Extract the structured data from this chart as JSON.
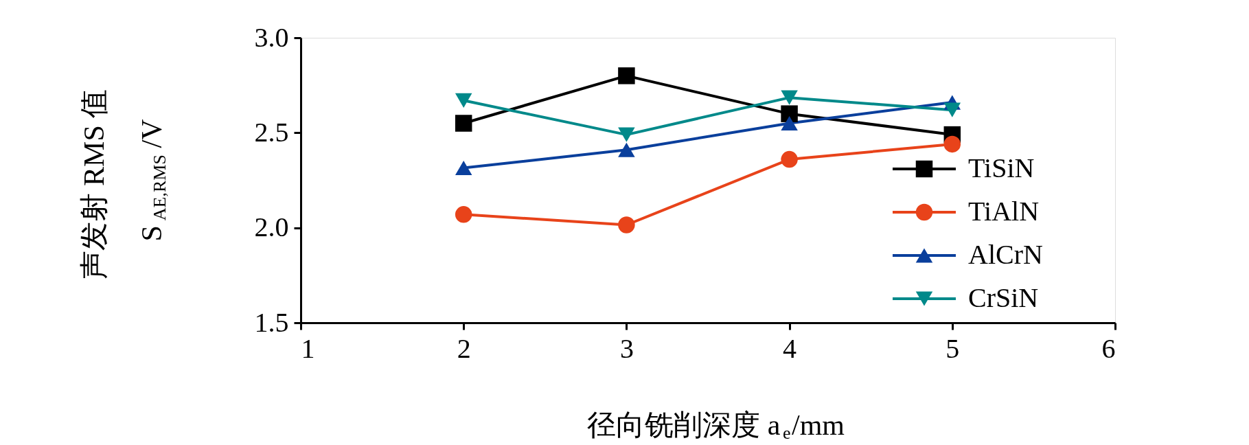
{
  "chart_data": {
    "type": "line",
    "xlabel": "径向铣削深度 a$_{e}$/mm",
    "ylabel": "声发射 RMS 值\nS$_{AE,RMS}$/V",
    "x": [
      2,
      3,
      4,
      5
    ],
    "xlim": [
      1,
      6
    ],
    "xticks": [
      1,
      2,
      3,
      4,
      5,
      6
    ],
    "ylim": [
      1.5,
      3.0
    ],
    "yticks": [
      {
        "value": 1.5,
        "label": "1.5"
      },
      {
        "value": 2.0,
        "label": "2.0"
      },
      {
        "value": 2.5,
        "label": "2.5"
      },
      {
        "value": 3.0,
        "label": "3.0"
      }
    ],
    "grid": false,
    "legend": "bottom right",
    "line_style": "solid",
    "series": [
      {
        "name": "TiSiN",
        "color": "#000000",
        "marker": "square",
        "values": [
          2.55,
          2.8,
          2.6,
          2.49
        ]
      },
      {
        "name": "TiAlN",
        "color": "#e8431a",
        "marker": "circle",
        "values": [
          2.07,
          2.015,
          2.36,
          2.44
        ]
      },
      {
        "name": "AlCrN",
        "color": "#0a3f9c",
        "marker": "triangle",
        "values": [
          2.315,
          2.41,
          2.55,
          2.66
        ]
      },
      {
        "name": "CrSiN",
        "color": "#00898a",
        "marker": "triangle-down",
        "values": [
          2.67,
          2.49,
          2.685,
          2.62
        ]
      }
    ]
  }
}
